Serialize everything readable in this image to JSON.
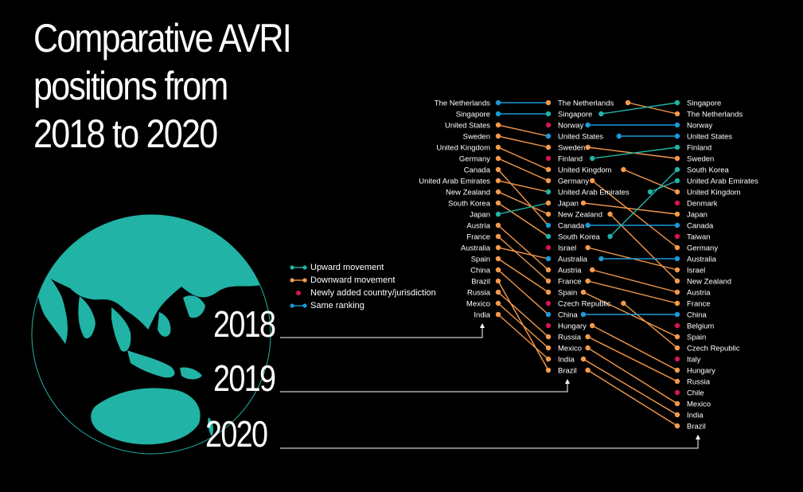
{
  "title": {
    "line1": "Comparative AVRI",
    "line2": "positions from",
    "line3": "2018 to 2020"
  },
  "colors": {
    "upward": "#21b3a6",
    "downward": "#f59a4b",
    "new": "#d4145a",
    "same": "#1b9ad6",
    "globe": "#21b3a6",
    "text": "#ffffff",
    "background": "#000000"
  },
  "legend": [
    {
      "key": "upward",
      "label": "Upward movement"
    },
    {
      "key": "downward",
      "label": "Downward movement"
    },
    {
      "key": "new",
      "label": "Newly added country/jurisdiction"
    },
    {
      "key": "same",
      "label": "Same ranking"
    }
  ],
  "years": [
    "2018",
    "2019",
    "2020"
  ],
  "chart_data": {
    "type": "slope",
    "columns": [
      {
        "year": "2018",
        "countries": [
          "The Netherlands",
          "Singapore",
          "United States",
          "Sweden",
          "United Kingdom",
          "Germany",
          "Canada",
          "United Arab Emirates",
          "New Zealand",
          "South Korea",
          "Japan",
          "Austria",
          "France",
          "Australia",
          "Spain",
          "China",
          "Brazil",
          "Russia",
          "Mexico",
          "India"
        ]
      },
      {
        "year": "2019",
        "countries": [
          "The Netherlands",
          "Singapore",
          "Norway",
          "United States",
          "Sweden",
          "Finland",
          "United Kingdom",
          "Germany",
          "United Arab Emirates",
          "Japan",
          "New Zealand",
          "Canada",
          "South Korea",
          "Israel",
          "Australia",
          "Austria",
          "France",
          "Spain",
          "Czech Republic",
          "China",
          "Hungary",
          "Russia",
          "Mexico",
          "India",
          "Brazil"
        ]
      },
      {
        "year": "2020",
        "countries": [
          "Singapore",
          "The Netherlands",
          "Norway",
          "United States",
          "Finland",
          "Sweden",
          "South Korea",
          "United Arab Emirates",
          "United Kingdom",
          "Denmark",
          "Japan",
          "Canada",
          "Taiwan",
          "Germany",
          "Australia",
          "Israel",
          "New Zealand",
          "Austria",
          "France",
          "China",
          "Belgium",
          "Spain",
          "Czech Republic",
          "Italy",
          "Hungary",
          "Russia",
          "Chile",
          "Mexico",
          "India",
          "Brazil"
        ]
      }
    ]
  }
}
